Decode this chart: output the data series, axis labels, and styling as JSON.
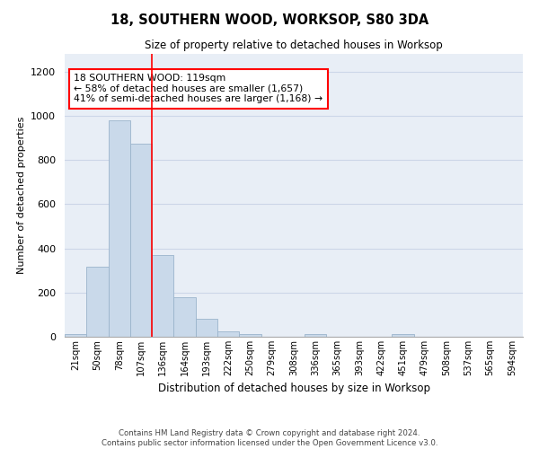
{
  "title": "18, SOUTHERN WOOD, WORKSOP, S80 3DA",
  "subtitle": "Size of property relative to detached houses in Worksop",
  "xlabel": "Distribution of detached houses by size in Worksop",
  "ylabel": "Number of detached properties",
  "footer_line1": "Contains HM Land Registry data © Crown copyright and database right 2024.",
  "footer_line2": "Contains public sector information licensed under the Open Government Licence v3.0.",
  "annotation_line1": "18 SOUTHERN WOOD: 119sqm",
  "annotation_line2": "← 58% of detached houses are smaller (1,657)",
  "annotation_line3": "41% of semi-detached houses are larger (1,168) →",
  "bar_labels": [
    "21sqm",
    "50sqm",
    "78sqm",
    "107sqm",
    "136sqm",
    "164sqm",
    "193sqm",
    "222sqm",
    "250sqm",
    "279sqm",
    "308sqm",
    "336sqm",
    "365sqm",
    "393sqm",
    "422sqm",
    "451sqm",
    "479sqm",
    "508sqm",
    "537sqm",
    "565sqm",
    "594sqm"
  ],
  "bar_values": [
    12,
    315,
    980,
    875,
    370,
    180,
    80,
    25,
    12,
    0,
    0,
    12,
    0,
    0,
    0,
    12,
    0,
    0,
    0,
    0,
    0
  ],
  "bar_color": "#c9d9ea",
  "bar_edge_color": "#9ab4cc",
  "ylim": [
    0,
    1280
  ],
  "yticks": [
    0,
    200,
    400,
    600,
    800,
    1000,
    1200
  ],
  "grid_color": "#ccd6e8",
  "bg_color": "#e8eef6"
}
